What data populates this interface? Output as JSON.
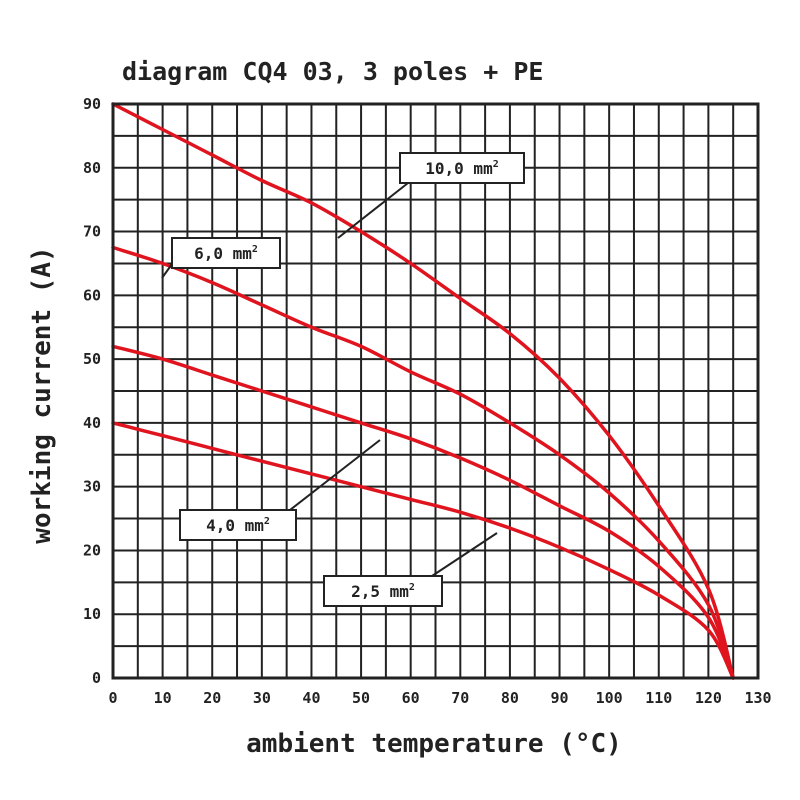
{
  "chart_data": {
    "type": "line",
    "title": "diagram CQ4 03, 3 poles + PE",
    "xlabel": "ambient temperature (°C)",
    "ylabel": "working current (A)",
    "xlim": [
      0,
      130
    ],
    "ylim": [
      0,
      90
    ],
    "xticks": [
      0,
      10,
      20,
      30,
      40,
      50,
      60,
      70,
      80,
      90,
      100,
      110,
      120,
      130
    ],
    "yticks": [
      0,
      10,
      20,
      30,
      40,
      50,
      60,
      70,
      80,
      90
    ],
    "xtick_labels": [
      "0",
      "10",
      "20",
      "30",
      "40",
      "50",
      "60",
      "70",
      "80",
      "90",
      "100",
      "110",
      "120",
      "130"
    ],
    "ytick_labels": [
      "0",
      "10",
      "20",
      "30",
      "40",
      "50",
      "60",
      "70",
      "80",
      "90"
    ],
    "grid": true,
    "series": [
      {
        "name": "10,0 mm²",
        "label_main": "10,0 mm",
        "label_sup": "2",
        "label_anchor_x": 48,
        "label_anchor_y": 73,
        "x": [
          0,
          10,
          20,
          30,
          40,
          50,
          60,
          70,
          80,
          90,
          100,
          110,
          120,
          125
        ],
        "y": [
          90,
          86,
          82,
          78,
          74.5,
          70,
          65,
          59.5,
          54,
          47,
          38,
          27,
          14,
          0
        ]
      },
      {
        "name": "6,0 mm²",
        "label_main": "6,0 mm",
        "label_sup": "2",
        "label_anchor_x": 9,
        "label_anchor_y": 65,
        "x": [
          0,
          10,
          20,
          30,
          40,
          50,
          60,
          70,
          80,
          90,
          100,
          110,
          120,
          125
        ],
        "y": [
          67.5,
          65,
          62,
          58.5,
          55,
          52,
          48,
          44.5,
          40,
          35,
          29,
          21.5,
          11.5,
          0
        ]
      },
      {
        "name": "4,0 mm²",
        "label_main": "4,0 mm",
        "label_sup": "2",
        "label_anchor_x": 55,
        "label_anchor_y": 39,
        "x": [
          0,
          10,
          20,
          30,
          40,
          50,
          60,
          70,
          80,
          90,
          100,
          110,
          120,
          125
        ],
        "y": [
          52,
          50,
          47.5,
          45,
          42.5,
          40,
          37.5,
          34.5,
          31,
          27,
          23,
          17.5,
          9.5,
          0
        ]
      },
      {
        "name": "2,5 mm²",
        "label_main": "2,5 mm",
        "label_sup": "2",
        "label_anchor_x": 78,
        "label_anchor_y": 24,
        "x": [
          0,
          10,
          20,
          30,
          40,
          50,
          60,
          70,
          80,
          90,
          100,
          110,
          120,
          125
        ],
        "y": [
          40,
          38,
          36,
          34,
          32,
          30,
          28,
          26,
          23.5,
          20.5,
          17,
          13,
          7.5,
          0
        ]
      }
    ]
  },
  "colors": {
    "curve": "#e0141e",
    "curve_highlight": "#ff5a5a",
    "grid": "#222222"
  }
}
